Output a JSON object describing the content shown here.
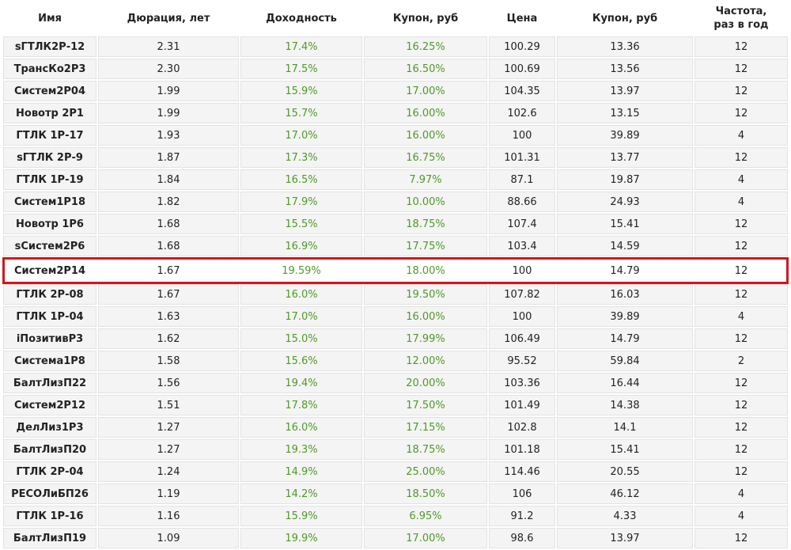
{
  "table": {
    "header": [
      "Имя",
      "Дюрация, лет",
      "Доходность",
      "Купон, руб",
      "Цена",
      "Купон, руб",
      "Частота,\nраз в год"
    ],
    "rows": [
      [
        "sГТЛК2Р-12",
        "2.31",
        "17.4%",
        "16.25%",
        "100.29",
        "13.36",
        "12"
      ],
      [
        "ТрансКо2Р3",
        "2.30",
        "17.5%",
        "16.50%",
        "100.69",
        "13.56",
        "12"
      ],
      [
        "Систем2Р04",
        "1.99",
        "15.9%",
        "17.00%",
        "104.35",
        "13.97",
        "12"
      ],
      [
        "Новотр 2Р1",
        "1.99",
        "15.7%",
        "16.00%",
        "102.6",
        "13.15",
        "12"
      ],
      [
        "ГТЛК 1Р-17",
        "1.93",
        "17.0%",
        "16.00%",
        "100",
        "39.89",
        "4"
      ],
      [
        "sГТЛК 2Р-9",
        "1.87",
        "17.3%",
        "16.75%",
        "101.31",
        "13.77",
        "12"
      ],
      [
        "ГТЛК 1Р-19",
        "1.84",
        "16.5%",
        "7.97%",
        "87.1",
        "19.87",
        "4"
      ],
      [
        "Систем1Р18",
        "1.82",
        "17.9%",
        "10.00%",
        "88.66",
        "24.93",
        "4"
      ],
      [
        "Новотр 1Р6",
        "1.68",
        "15.5%",
        "18.75%",
        "107.4",
        "15.41",
        "12"
      ],
      [
        "sСистем2Р6",
        "1.68",
        "16.9%",
        "17.75%",
        "103.4",
        "14.59",
        "12"
      ],
      [
        "Систем2Р14",
        "1.67",
        "19.59%",
        "18.00%",
        "100",
        "14.79",
        "12"
      ],
      [
        "ГТЛК 2Р-08",
        "1.67",
        "16.0%",
        "19.50%",
        "107.82",
        "16.03",
        "12"
      ],
      [
        "ГТЛК 1Р-04",
        "1.63",
        "17.0%",
        "16.00%",
        "100",
        "39.89",
        "4"
      ],
      [
        "iПозитивР3",
        "1.62",
        "15.0%",
        "17.99%",
        "106.49",
        "14.79",
        "12"
      ],
      [
        "Система1Р8",
        "1.58",
        "15.6%",
        "12.00%",
        "95.52",
        "59.84",
        "2"
      ],
      [
        "БалтЛизП22",
        "1.56",
        "19.4%",
        "20.00%",
        "103.36",
        "16.44",
        "12"
      ],
      [
        "Систем2Р12",
        "1.51",
        "17.8%",
        "17.50%",
        "101.49",
        "14.38",
        "12"
      ],
      [
        "ДелЛиз1Р3",
        "1.27",
        "16.0%",
        "17.15%",
        "102.8",
        "14.1",
        "12"
      ],
      [
        "БалтЛизП20",
        "1.27",
        "19.3%",
        "18.75%",
        "101.18",
        "15.41",
        "12"
      ],
      [
        "ГТЛК 2Р-04",
        "1.24",
        "14.9%",
        "25.00%",
        "114.46",
        "20.55",
        "12"
      ],
      [
        "РЕСОЛиБП26",
        "1.19",
        "14.2%",
        "18.50%",
        "106",
        "46.12",
        "4"
      ],
      [
        "ГТЛК 1Р-16",
        "1.16",
        "15.9%",
        "6.95%",
        "91.2",
        "4.33",
        "4"
      ],
      [
        "БалтЛизП19",
        "1.09",
        "19.9%",
        "17.00%",
        "98.6",
        "13.97",
        "12"
      ]
    ]
  }
}
